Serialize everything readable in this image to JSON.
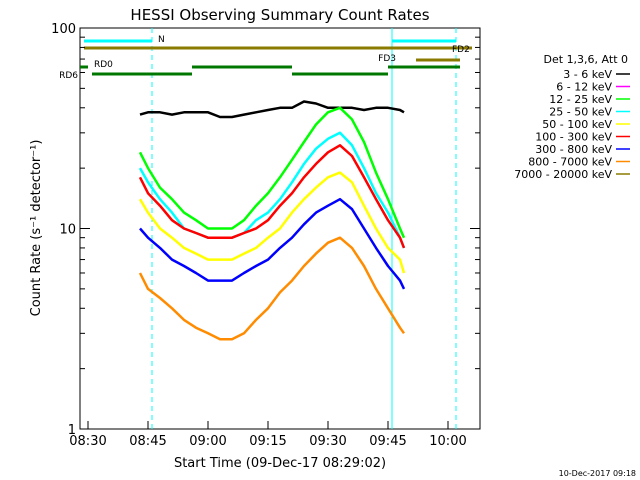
{
  "chart_data": {
    "type": "line",
    "title": "HESSI Observing Summary Count Rates",
    "xlabel": "Start Time (09-Dec-17 08:29:02)",
    "ylabel": "Count Rate (s⁻¹ detector⁻¹)",
    "yscale": "log",
    "ylim": [
      1,
      100
    ],
    "xlim": [
      "08:28",
      "10:08"
    ],
    "x_ticks": [
      "08:30",
      "08:45",
      "09:00",
      "09:15",
      "09:30",
      "09:45",
      "10:00"
    ],
    "y_ticks": [
      "1",
      "10",
      "100"
    ],
    "grid": false,
    "legend_position": "right",
    "legend_title": "Det 1,3,6, Att 0",
    "x": [
      "08:43",
      "08:45",
      "08:48",
      "08:51",
      "08:54",
      "08:57",
      "09:00",
      "09:03",
      "09:06",
      "09:09",
      "09:12",
      "09:15",
      "09:18",
      "09:21",
      "09:24",
      "09:27",
      "09:30",
      "09:33",
      "09:36",
      "09:39",
      "09:42",
      "09:45",
      "09:48",
      "09:49"
    ],
    "series": [
      {
        "name": "3 - 6 keV",
        "color": "#000000",
        "values": [
          37,
          38,
          38,
          37,
          38,
          38,
          38,
          36,
          36,
          37,
          38,
          39,
          40,
          40,
          43,
          42,
          40,
          40,
          40,
          39,
          40,
          40,
          39,
          38
        ]
      },
      {
        "name": "6 - 12 keV",
        "color": "#ff00ff",
        "values": [
          null,
          null,
          null,
          null,
          null,
          null,
          null,
          null,
          null,
          null,
          null,
          null,
          null,
          null,
          null,
          null,
          null,
          null,
          null,
          null,
          null,
          null,
          null,
          null
        ]
      },
      {
        "name": "12 - 25 keV",
        "color": "#00ff00",
        "values": [
          24,
          20,
          16,
          14,
          12,
          11,
          10,
          10,
          10,
          11,
          13,
          15,
          18,
          22,
          27,
          33,
          38,
          40,
          35,
          27,
          19,
          14,
          10,
          9
        ]
      },
      {
        "name": "25 - 50 keV",
        "color": "#00ffff",
        "values": [
          20,
          17,
          14,
          12,
          10,
          9.5,
          9,
          9,
          9,
          9.5,
          11,
          12,
          14,
          17,
          21,
          25,
          28,
          30,
          26,
          20,
          15,
          12,
          9,
          8
        ]
      },
      {
        "name": "50 - 100 keV",
        "color": "#ffff00",
        "values": [
          14,
          12,
          10,
          9,
          8,
          7.5,
          7,
          7,
          7,
          7.5,
          8,
          9,
          10,
          12,
          14,
          16,
          18,
          19,
          17,
          13,
          10,
          8,
          7,
          6
        ]
      },
      {
        "name": "100 - 300 keV",
        "color": "#ff0000",
        "values": [
          18,
          15,
          13,
          11,
          10,
          9.5,
          9,
          9,
          9,
          9.5,
          10,
          11,
          13,
          15,
          18,
          21,
          24,
          26,
          23,
          18,
          14,
          11,
          9,
          8
        ]
      },
      {
        "name": "300 - 800 keV",
        "color": "#0000ff",
        "values": [
          10,
          9,
          8,
          7,
          6.5,
          6,
          5.5,
          5.5,
          5.5,
          6,
          6.5,
          7,
          8,
          9,
          10.5,
          12,
          13,
          14,
          12.5,
          10,
          8,
          6.5,
          5.5,
          5
        ]
      },
      {
        "name": "800 - 7000 keV",
        "color": "#ff8c00",
        "values": [
          6,
          5,
          4.5,
          4,
          3.5,
          3.2,
          3,
          2.8,
          2.8,
          3,
          3.5,
          4,
          4.8,
          5.5,
          6.5,
          7.5,
          8.5,
          9,
          8,
          6.5,
          5,
          4,
          3.2,
          3
        ]
      },
      {
        "name": "7000 - 20000 keV",
        "color": "#8b7a00",
        "values": [
          null,
          null,
          null,
          null,
          null,
          null,
          null,
          null,
          null,
          null,
          null,
          null,
          null,
          null,
          null,
          null,
          null,
          null,
          null,
          null,
          null,
          null,
          null,
          null
        ]
      }
    ],
    "annotations": {
      "vertical_lines": [
        {
          "time": "08:46",
          "color": "#00ffff",
          "style": "dashed"
        },
        {
          "time": "09:46",
          "color": "#00ffff",
          "style": "solid"
        },
        {
          "time": "10:02",
          "color": "#00ffff",
          "style": "dashed"
        }
      ],
      "bars": [
        {
          "label": "N",
          "color": "#00ffff",
          "segments": [
            [
              "08:29",
              "08:46"
            ],
            [
              "09:46",
              "10:02"
            ]
          ],
          "row": 0
        },
        {
          "label": "FD2",
          "color": "#8b7a00",
          "segments": [
            [
              "08:29",
              "10:06"
            ]
          ],
          "row": 1
        },
        {
          "label": "FD3",
          "color": "#8b7a00",
          "segments": [
            [
              "09:52",
              "10:03"
            ]
          ],
          "row": 2
        },
        {
          "label": "RD0",
          "color": "#007700",
          "segments": [
            [
              "08:28",
              "08:30"
            ]
          ],
          "row": 3
        },
        {
          "label": "RD6",
          "color": "#007700",
          "segments": [
            [
              "08:31",
              "08:56"
            ],
            [
              "09:21",
              "09:45"
            ]
          ],
          "row": 4
        },
        {
          "label": "",
          "color": "#007700",
          "segments": [
            [
              "08:56",
              "09:21"
            ],
            [
              "09:45",
              "10:03"
            ]
          ],
          "row": 3
        }
      ]
    }
  },
  "footer_timestamp": "10-Dec-2017 09:18"
}
